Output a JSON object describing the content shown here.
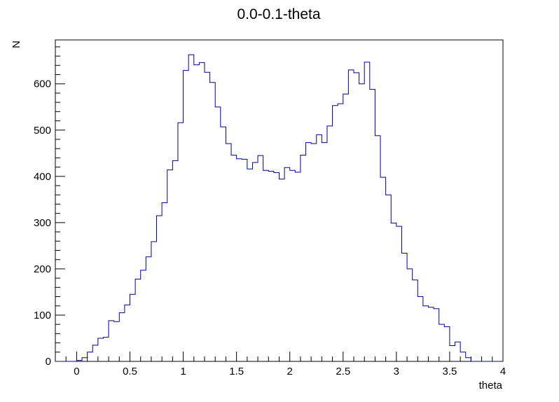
{
  "chart_data": {
    "type": "histogram",
    "title": "0.0-0.1-theta",
    "xlabel": "theta",
    "ylabel": "N",
    "xlim": [
      -0.2,
      4.0
    ],
    "ylim": [
      0,
      695
    ],
    "bin_width": 0.05,
    "bin_start": -0.2,
    "x_ticks": [
      0,
      0.5,
      1,
      1.5,
      2,
      2.5,
      3,
      3.5,
      4
    ],
    "x_tick_labels": [
      "0",
      "0.5",
      "1",
      "1.5",
      "2",
      "2.5",
      "3",
      "3.5",
      "4"
    ],
    "y_ticks": [
      0,
      100,
      200,
      300,
      400,
      500,
      600
    ],
    "y_tick_labels": [
      "0",
      "100",
      "200",
      "300",
      "400",
      "500",
      "600"
    ],
    "line_color": "#000099",
    "grid": false,
    "values": [
      0,
      0,
      0,
      0,
      2,
      8,
      20,
      35,
      50,
      52,
      88,
      86,
      105,
      122,
      145,
      178,
      197,
      226,
      259,
      315,
      343,
      414,
      434,
      516,
      629,
      663,
      641,
      646,
      625,
      603,
      550,
      507,
      471,
      446,
      438,
      437,
      416,
      430,
      445,
      413,
      411,
      408,
      394,
      419,
      413,
      409,
      446,
      473,
      471,
      490,
      473,
      509,
      553,
      557,
      578,
      630,
      624,
      600,
      647,
      588,
      488,
      398,
      360,
      299,
      292,
      234,
      200,
      176,
      140,
      120,
      117,
      114,
      80,
      75,
      34,
      42,
      20,
      8,
      0,
      0,
      0,
      0,
      0,
      0
    ]
  }
}
